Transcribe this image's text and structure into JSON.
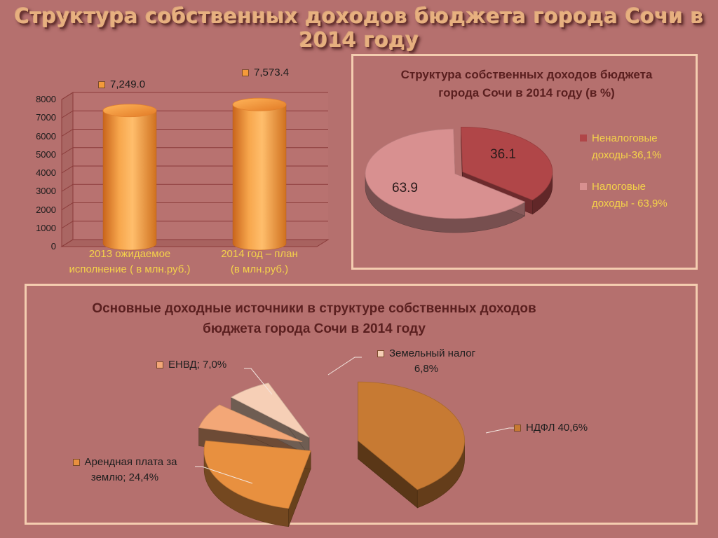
{
  "slide": {
    "title": "Структура собственных доходов бюджета города Сочи в 2014 году"
  },
  "colors": {
    "background": "#b5706e",
    "panel_border": "#f4cdb0",
    "bar_fill": "#f49a3a",
    "label_yellow": "#f4d24a",
    "title_dark": "#5a1f1f"
  },
  "chart_data": [
    {
      "type": "bar",
      "style": "3d-cylinder",
      "categories": [
        "2013 ожидаемое исполнение ( в млн.руб.)",
        "2014 год – план (в млн.руб.)"
      ],
      "category_lines": [
        [
          "2013 ожидаемое",
          "исполнение ( в млн.руб.)"
        ],
        [
          "2014 год – план",
          "(в млн.руб.)"
        ]
      ],
      "values": [
        7249.0,
        7573.4
      ],
      "data_labels": [
        "7,249.0",
        "7,573.4"
      ],
      "ylim": [
        0,
        8000
      ],
      "yticks": [
        0,
        1000,
        2000,
        3000,
        4000,
        5000,
        6000,
        7000,
        8000
      ],
      "grid": true,
      "title": "",
      "xlabel": "",
      "ylabel": ""
    },
    {
      "type": "pie",
      "style": "3d-exploded",
      "title": "Структура собственных доходов бюджета города Сочи  в 2014 году (в %)",
      "title_lines": [
        "Структура собственных доходов бюджета",
        "города Сочи  в 2014 году (в %)"
      ],
      "slices": [
        {
          "label": "Неналоговые доходы-36,1%",
          "label_lines": [
            "Неналоговые",
            "доходы-36,1%"
          ],
          "value": 36.1,
          "data_label": "36.1",
          "color": "#b04648"
        },
        {
          "label": "Налоговые доходы - 63,9%",
          "label_lines": [
            "Налоговые",
            "доходы - 63,9%"
          ],
          "value": 63.9,
          "data_label": "63.9",
          "color": "#d89090"
        }
      ],
      "legend": "right"
    },
    {
      "type": "pie",
      "style": "3d-exploded",
      "title": "Основные доходные источники в структуре собственных доходов бюджета города Сочи в 2014 году",
      "title_lines": [
        "Основные доходные источники в структуре собственных доходов",
        "бюджета города Сочи в 2014 году"
      ],
      "slices": [
        {
          "label": "НДФЛ 40,6%",
          "label_lines": [
            "НДФЛ 40,6%"
          ],
          "value": 40.6,
          "color": "#c77a33"
        },
        {
          "label": "Арендная плата за землю; 24,4%",
          "label_lines": [
            "Арендная плата за",
            "землю; 24,4%"
          ],
          "value": 24.4,
          "color": "#e8903f"
        },
        {
          "label": "ЕНВД; 7,0%",
          "label_lines": [
            "ЕНВД; 7,0%"
          ],
          "value": 7.0,
          "color": "#f3a777"
        },
        {
          "label": "Земельный налог 6,8%",
          "label_lines": [
            "Земельный налог",
            "6,8%"
          ],
          "value": 6.8,
          "color": "#f6cfb6"
        }
      ],
      "legend": "data-labels-with-leaders"
    }
  ]
}
